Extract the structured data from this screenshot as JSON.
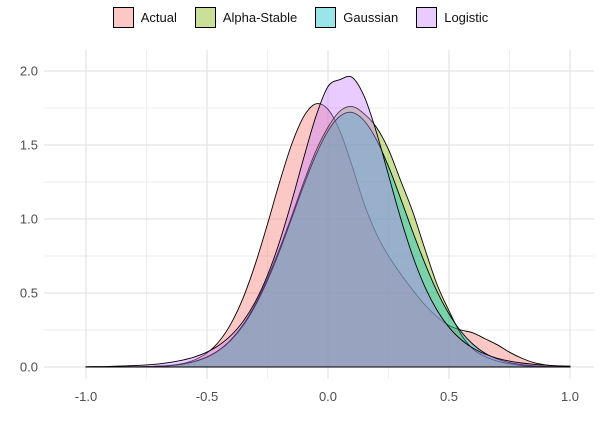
{
  "legend": {
    "position": "top",
    "items": [
      {
        "label": "Actual",
        "color": "#F8766D"
      },
      {
        "label": "Alpha-Stable",
        "color": "#7CAE00"
      },
      {
        "label": "Gaussian",
        "color": "#00BFC4"
      },
      {
        "label": "Logistic",
        "color": "#C77CFF"
      }
    ]
  },
  "chart_data": {
    "type": "area",
    "subtype": "overlaid-density",
    "title": "",
    "xlabel": "",
    "ylabel": "",
    "grid": true,
    "legend_position": "top",
    "xlim": [
      -1.17,
      1.09
    ],
    "ylim": [
      -0.07,
      2.16
    ],
    "x_ticks": [
      -1.0,
      -0.5,
      0.0,
      0.5,
      1.0
    ],
    "x_tick_labels": [
      "-1.0",
      "-0.5",
      "0.0",
      "0.5",
      "1.0"
    ],
    "y_ticks": [
      0.0,
      0.5,
      1.0,
      1.5,
      2.0
    ],
    "y_tick_labels": [
      "0.0",
      "0.5",
      "1.0",
      "1.5",
      "2.0"
    ],
    "x_minor_ticks": [
      -0.75,
      -0.25,
      0.25,
      0.75
    ],
    "y_minor_ticks": [
      0.25,
      0.75,
      1.25,
      1.75
    ],
    "fill_opacity": 0.4,
    "outline_color": "#000000",
    "x": [
      -1.0,
      -0.95,
      -0.9,
      -0.85,
      -0.8,
      -0.75,
      -0.7,
      -0.65,
      -0.6,
      -0.55,
      -0.5,
      -0.45,
      -0.4,
      -0.35,
      -0.3,
      -0.25,
      -0.2,
      -0.15,
      -0.1,
      -0.05,
      0.0,
      0.05,
      0.1,
      0.15,
      0.2,
      0.25,
      0.3,
      0.35,
      0.4,
      0.45,
      0.5,
      0.55,
      0.6,
      0.65,
      0.7,
      0.75,
      0.8,
      0.85,
      0.9,
      0.95,
      1.0
    ],
    "series": [
      {
        "name": "Actual",
        "color": "#F8766D",
        "peak": {
          "x": -0.05,
          "y": 1.78
        },
        "values": [
          0,
          0,
          0.001,
          0.001,
          0.001,
          0.002,
          0.005,
          0.011,
          0.023,
          0.049,
          0.095,
          0.173,
          0.296,
          0.47,
          0.698,
          0.966,
          1.249,
          1.505,
          1.693,
          1.778,
          1.741,
          1.591,
          1.356,
          1.1,
          0.9,
          0.75,
          0.63,
          0.52,
          0.42,
          0.34,
          0.28,
          0.25,
          0.23,
          0.19,
          0.15,
          0.1,
          0.06,
          0.03,
          0.014,
          0.005,
          0.001
        ]
      },
      {
        "name": "Alpha-Stable",
        "color": "#7CAE00",
        "peak": {
          "x": 0.1,
          "y": 1.76
        },
        "values": [
          0,
          0,
          0,
          0.001,
          0.001,
          0.002,
          0.005,
          0.01,
          0.02,
          0.038,
          0.068,
          0.115,
          0.186,
          0.288,
          0.425,
          0.6,
          0.8,
          1.02,
          1.25,
          1.46,
          1.62,
          1.73,
          1.76,
          1.71,
          1.62,
          1.47,
          1.26,
          1.05,
          0.8,
          0.56,
          0.38,
          0.22,
          0.12,
          0.07,
          0.04,
          0.022,
          0.01,
          0.004,
          0.002,
          0.001,
          0
        ]
      },
      {
        "name": "Gaussian",
        "color": "#00BFC4",
        "peak": {
          "x": 0.1,
          "y": 1.72
        },
        "values": [
          0,
          0,
          0,
          0.001,
          0.001,
          0.002,
          0.005,
          0.01,
          0.02,
          0.038,
          0.067,
          0.113,
          0.183,
          0.282,
          0.416,
          0.585,
          0.784,
          1.005,
          1.229,
          1.432,
          1.595,
          1.695,
          1.72,
          1.663,
          1.536,
          1.355,
          1.139,
          0.914,
          0.702,
          0.513,
          0.359,
          0.239,
          0.152,
          0.092,
          0.054,
          0.03,
          0.016,
          0.008,
          0.004,
          0.002,
          0.001
        ]
      },
      {
        "name": "Logistic",
        "color": "#C77CFF",
        "peak": {
          "x": 0.08,
          "y": 1.96
        },
        "values": [
          0.002,
          0.003,
          0.004,
          0.007,
          0.01,
          0.014,
          0.021,
          0.032,
          0.047,
          0.069,
          0.101,
          0.148,
          0.215,
          0.31,
          0.442,
          0.62,
          0.847,
          1.119,
          1.415,
          1.693,
          1.895,
          1.942,
          1.957,
          1.827,
          1.587,
          1.296,
          1.006,
          0.75,
          0.543,
          0.385,
          0.268,
          0.185,
          0.127,
          0.087,
          0.059,
          0.04,
          0.027,
          0.018,
          0.012,
          0.008,
          0.006
        ]
      }
    ]
  },
  "style": {
    "background": "#FFFFFF",
    "grid_major_color": "#E3E3E3",
    "grid_minor_color": "#EEEEEE",
    "axis_text_color": "#4D4D4D",
    "legend_text_color": "#111111"
  }
}
